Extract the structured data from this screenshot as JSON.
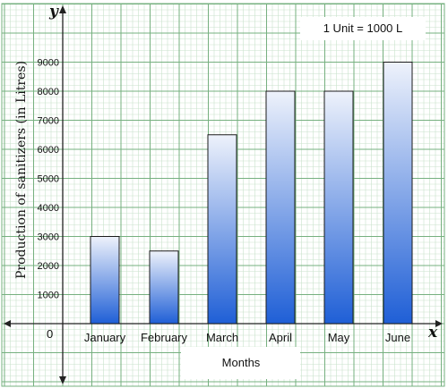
{
  "chart_data": {
    "type": "bar",
    "categories": [
      "January",
      "February",
      "March",
      "April",
      "May",
      "June"
    ],
    "values": [
      3000,
      2500,
      6500,
      8000,
      8000,
      9000
    ],
    "ylabel": "Production of sanitizers (in Litres)",
    "xlabel": "Months",
    "x_axis_symbol": "x",
    "y_axis_symbol": "y",
    "origin_label": "0",
    "unit_note": "1 Unit = 1000 L",
    "yticks": [
      1000,
      2000,
      3000,
      4000,
      5000,
      6000,
      7000,
      8000,
      9000
    ],
    "ylim": [
      0,
      9000
    ],
    "grid": true,
    "colors": {
      "bar_top": "#eef2fb",
      "bar_bottom": "#1f5fd6",
      "grid_major": "#76b07f",
      "grid_minor": "#c9e2cc",
      "axis": "#222222"
    }
  }
}
